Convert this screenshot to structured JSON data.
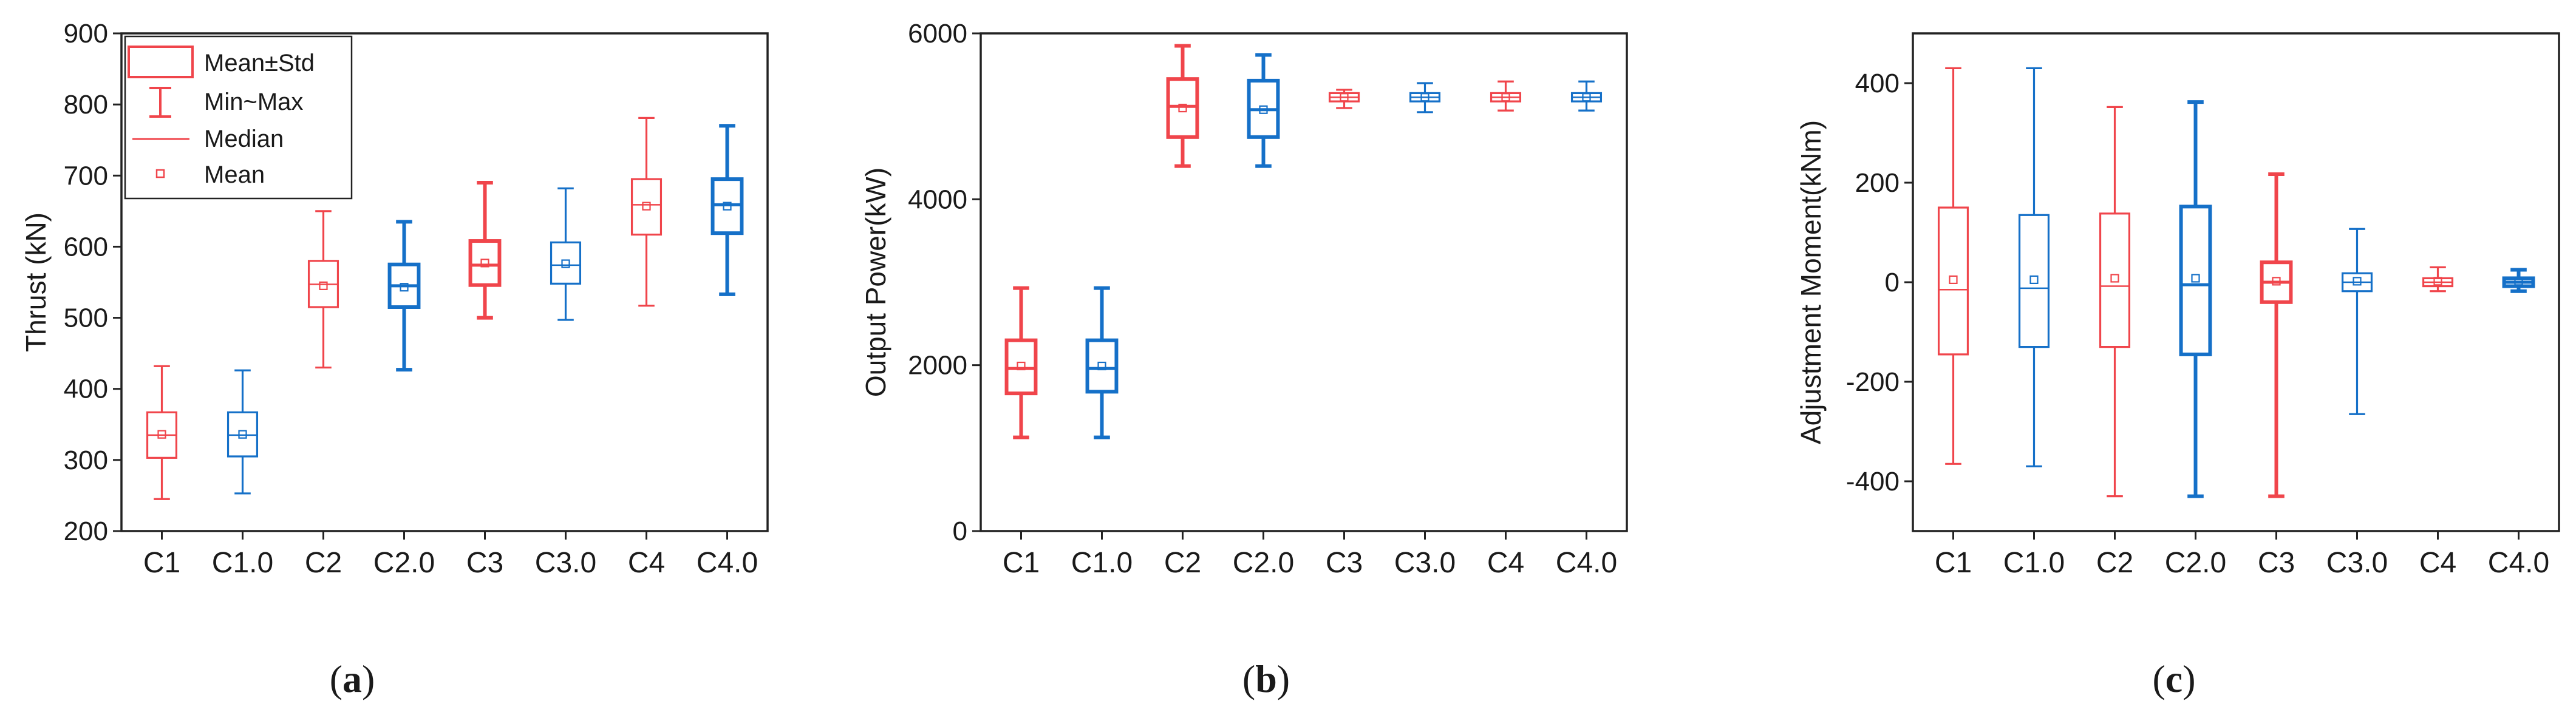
{
  "colors": {
    "red": "#f0454b",
    "blue": "#1570c8",
    "axis": "#222222"
  },
  "legend": {
    "items": [
      {
        "key": "box",
        "label": "Mean±Std"
      },
      {
        "key": "whisker",
        "label": "Min~Max"
      },
      {
        "key": "median",
        "label": "Median"
      },
      {
        "key": "mean",
        "label": "Mean"
      }
    ]
  },
  "panel_labels": {
    "a": "a",
    "b": "b",
    "c": "c"
  },
  "chart_data": [
    {
      "id": "a",
      "type": "box",
      "ylabel": "Thrust (kN)",
      "ylim": [
        200,
        900
      ],
      "yticks": [
        200,
        300,
        400,
        500,
        600,
        700,
        800,
        900
      ],
      "categories": [
        "C1",
        "C1.0",
        "C2",
        "C2.0",
        "C3",
        "C3.0",
        "C4",
        "C4.0"
      ],
      "colors": [
        "red",
        "blue",
        "red",
        "blue",
        "red",
        "blue",
        "red",
        "blue"
      ],
      "line_weight": [
        "thin",
        "thin",
        "thin",
        "thick",
        "thick",
        "thin",
        "thin",
        "thick"
      ],
      "min": [
        245,
        253,
        430,
        427,
        500,
        497,
        517,
        533
      ],
      "q_low": [
        303,
        305,
        515,
        515,
        546,
        548,
        617,
        619
      ],
      "median": [
        335,
        335,
        547,
        545,
        574,
        574,
        659,
        659
      ],
      "mean": [
        336,
        336,
        545,
        543,
        577,
        576,
        657,
        657
      ],
      "q_high": [
        367,
        367,
        580,
        575,
        608,
        606,
        695,
        695
      ],
      "max": [
        432,
        426,
        650,
        635,
        690,
        682,
        781,
        770
      ]
    },
    {
      "id": "b",
      "type": "box",
      "ylabel": "Output Power(kW)",
      "ylim": [
        0,
        6000
      ],
      "yticks": [
        0,
        2000,
        4000,
        6000
      ],
      "categories": [
        "C1",
        "C1.0",
        "C2",
        "C2.0",
        "C3",
        "C3.0",
        "C4",
        "C4.0"
      ],
      "colors": [
        "red",
        "blue",
        "red",
        "blue",
        "red",
        "blue",
        "red",
        "blue"
      ],
      "line_weight": [
        "thick",
        "thick",
        "thick",
        "thick",
        "thin",
        "thin",
        "thin",
        "thin"
      ],
      "min": [
        1130,
        1130,
        4400,
        4400,
        5100,
        5050,
        5070,
        5070
      ],
      "q_low": [
        1660,
        1680,
        4750,
        4750,
        5180,
        5180,
        5180,
        5180
      ],
      "median": [
        1960,
        1960,
        5120,
        5080,
        5230,
        5230,
        5230,
        5230
      ],
      "mean": [
        1990,
        1990,
        5100,
        5080,
        5230,
        5230,
        5230,
        5230
      ],
      "q_high": [
        2300,
        2300,
        5450,
        5430,
        5280,
        5280,
        5280,
        5280
      ],
      "max": [
        2930,
        2930,
        5850,
        5740,
        5320,
        5400,
        5420,
        5420
      ]
    },
    {
      "id": "c",
      "type": "box",
      "ylabel": "Adjustment Moment(kNm)",
      "ylim": [
        -500,
        500
      ],
      "yticks": [
        -400,
        -200,
        0,
        200,
        400
      ],
      "categories": [
        "C1",
        "C1.0",
        "C2",
        "C2.0",
        "C3",
        "C3.0",
        "C4",
        "C4.0"
      ],
      "colors": [
        "red",
        "blue",
        "red",
        "blue",
        "red",
        "blue",
        "red",
        "blue"
      ],
      "line_weight": [
        "thin",
        "thin",
        "thin",
        "thick",
        "thick",
        "thin",
        "thin",
        "thick"
      ],
      "min": [
        -365,
        -370,
        -430,
        -430,
        -430,
        -265,
        -18,
        -18
      ],
      "q_low": [
        -145,
        -130,
        -130,
        -145,
        -40,
        -18,
        -8,
        -8
      ],
      "median": [
        -15,
        -12,
        -8,
        -5,
        0,
        0,
        0,
        0
      ],
      "mean": [
        5,
        5,
        8,
        8,
        2,
        2,
        2,
        2
      ],
      "q_high": [
        150,
        135,
        138,
        152,
        40,
        18,
        8,
        8
      ],
      "max": [
        430,
        430,
        352,
        362,
        217,
        107,
        30,
        25
      ]
    }
  ]
}
